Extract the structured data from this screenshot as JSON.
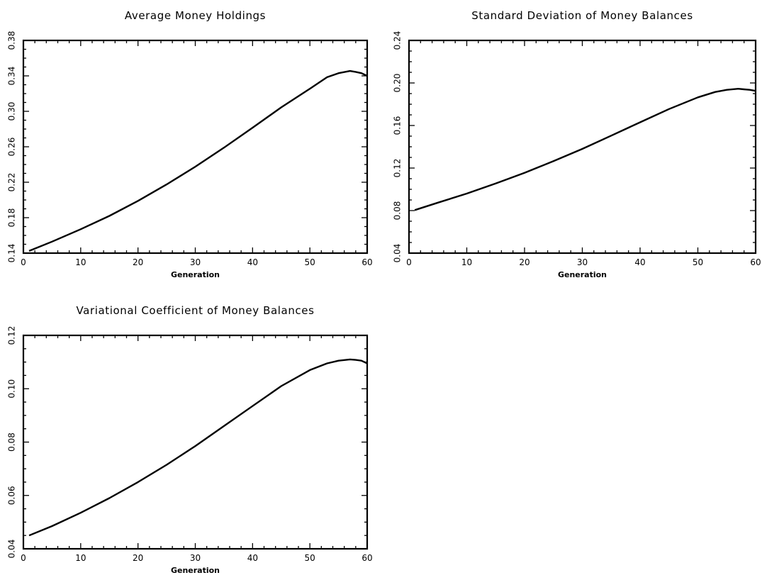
{
  "chart_data": [
    {
      "type": "line",
      "title": "Average Money Holdings",
      "xlabel": "Generation",
      "ylabel": "",
      "xlim": [
        0,
        60
      ],
      "ylim": [
        0.14,
        0.38
      ],
      "xticks": [
        0,
        10,
        20,
        30,
        40,
        50,
        60
      ],
      "yticks": [
        0.14,
        0.18,
        0.22,
        0.26,
        0.3,
        0.34,
        0.38
      ],
      "ytick_labels": [
        "0.14",
        "0.18",
        "0.22",
        "0.26",
        "0.30",
        "0.34",
        "0.38"
      ],
      "grid": false,
      "series": [
        {
          "x": [
            1,
            5,
            10,
            15,
            20,
            25,
            30,
            35,
            40,
            45,
            50,
            53,
            55,
            57,
            58,
            59,
            60
          ],
          "y": [
            0.1425,
            0.153,
            0.167,
            0.182,
            0.199,
            0.2175,
            0.2375,
            0.259,
            0.2815,
            0.3045,
            0.3255,
            0.3385,
            0.343,
            0.3455,
            0.3445,
            0.343,
            0.34
          ]
        }
      ]
    },
    {
      "type": "line",
      "title": "Standard Deviation of Money Balances",
      "xlabel": "Generation",
      "ylabel": "",
      "xlim": [
        0,
        60
      ],
      "ylim": [
        0.04,
        0.24
      ],
      "xticks": [
        0,
        10,
        20,
        30,
        40,
        50,
        60
      ],
      "yticks": [
        0.04,
        0.08,
        0.12,
        0.16,
        0.2,
        0.24
      ],
      "ytick_labels": [
        "0.04",
        "0.08",
        "0.12",
        "0.16",
        "0.20",
        "0.24"
      ],
      "grid": false,
      "series": [
        {
          "x": [
            1,
            5,
            10,
            15,
            20,
            25,
            30,
            35,
            40,
            45,
            50,
            53,
            55,
            57,
            58,
            59,
            60
          ],
          "y": [
            0.0805,
            0.0875,
            0.096,
            0.1055,
            0.1155,
            0.1265,
            0.138,
            0.1505,
            0.163,
            0.1755,
            0.1865,
            0.1915,
            0.1935,
            0.1945,
            0.194,
            0.1935,
            0.1925
          ]
        }
      ]
    },
    {
      "type": "line",
      "title": "Variational Coefficient of Money Balances",
      "xlabel": "Generation",
      "ylabel": "",
      "xlim": [
        0,
        60
      ],
      "ylim": [
        0.04,
        0.12
      ],
      "xticks": [
        0,
        10,
        20,
        30,
        40,
        50,
        60
      ],
      "yticks": [
        0.04,
        0.06,
        0.08,
        0.1,
        0.12
      ],
      "ytick_labels": [
        "0.04",
        "0.06",
        "0.08",
        "0.10",
        "0.12"
      ],
      "grid": false,
      "series": [
        {
          "x": [
            1,
            5,
            10,
            15,
            20,
            25,
            30,
            35,
            40,
            45,
            50,
            53,
            55,
            57,
            58,
            59,
            60
          ],
          "y": [
            0.045,
            0.0485,
            0.0535,
            0.059,
            0.065,
            0.0715,
            0.0785,
            0.086,
            0.0935,
            0.101,
            0.107,
            0.1095,
            0.1105,
            0.111,
            0.1108,
            0.1105,
            0.1095
          ]
        }
      ]
    }
  ]
}
